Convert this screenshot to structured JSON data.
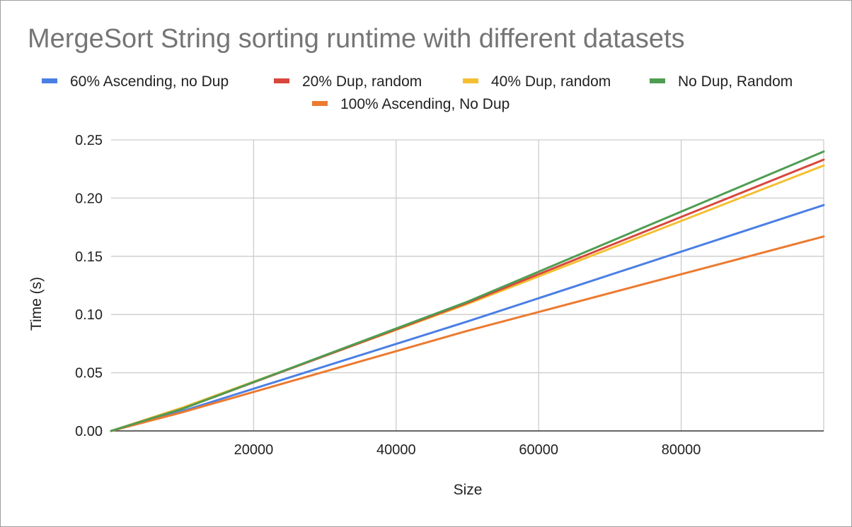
{
  "chart_data": {
    "type": "line",
    "title": "MergeSort String sorting runtime with different datasets",
    "xlabel": "Size",
    "ylabel": "Time (s)",
    "xlim": [
      0,
      100000
    ],
    "ylim": [
      0,
      0.25
    ],
    "x_ticks": [
      {
        "value": 20000,
        "label": "20000"
      },
      {
        "value": 40000,
        "label": "40000"
      },
      {
        "value": 60000,
        "label": "60000"
      },
      {
        "value": 80000,
        "label": "80000"
      }
    ],
    "y_ticks": [
      {
        "value": 0,
        "label": "0.00"
      },
      {
        "value": 0.05,
        "label": "0.05"
      },
      {
        "value": 0.1,
        "label": "0.10"
      },
      {
        "value": 0.15,
        "label": "0.15"
      },
      {
        "value": 0.2,
        "label": "0.20"
      },
      {
        "value": 0.25,
        "label": "0.25"
      }
    ],
    "grid": true,
    "legend_position": "top",
    "x": [
      0,
      10000,
      50000,
      100000
    ],
    "series": [
      {
        "name": "60% Ascending, no Dup",
        "color": "#4a7fe4",
        "values": [
          0,
          0.017,
          0.094,
          0.194
        ]
      },
      {
        "name": "20% Dup, random",
        "color": "#d9473c",
        "values": [
          0,
          0.019,
          0.11,
          0.233
        ]
      },
      {
        "name": "40% Dup, random",
        "color": "#f5bf32",
        "values": [
          0,
          0.02,
          0.109,
          0.228
        ]
      },
      {
        "name": "No Dup, Random",
        "color": "#4f9d52",
        "values": [
          0,
          0.019,
          0.111,
          0.24
        ]
      },
      {
        "name": "100% Ascending, No Dup",
        "color": "#ec7a2f",
        "values": [
          0,
          0.016,
          0.086,
          0.167
        ]
      }
    ]
  }
}
